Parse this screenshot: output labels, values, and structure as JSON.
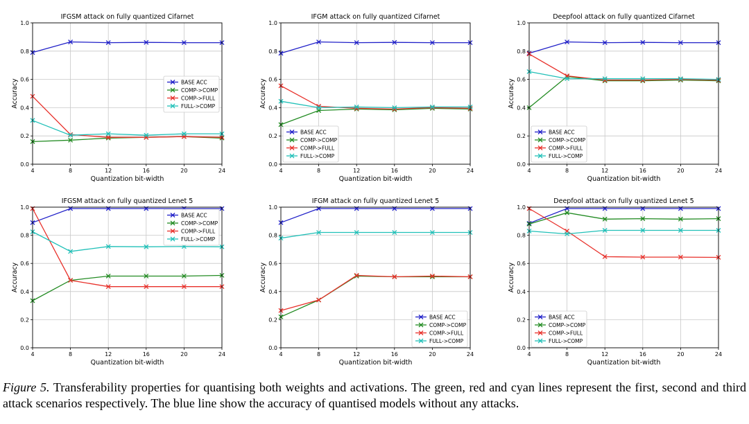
{
  "figure": {
    "shared": {
      "x": [
        4,
        8,
        12,
        16,
        20,
        24
      ],
      "xticks": [
        "4",
        "8",
        "12",
        "16",
        "20",
        "24"
      ],
      "yticks": [
        "0.0",
        "0.2",
        "0.4",
        "0.6",
        "0.8",
        "1.0"
      ],
      "xlabel": "Quantization bit-width",
      "ylabel": "Accuracy"
    },
    "caption": {
      "label": "Figure 5.",
      "text": " Transferability properties for quantising both weights and activations. The green, red and cyan lines represent the first, second and third attack scenarios respectively. The blue line show the accuracy of quantised models without any attacks."
    }
  },
  "colors": {
    "base": "#1f1fc8",
    "comp_comp": "#228b22",
    "comp_full": "#e8302a",
    "full_comp": "#20c0b8",
    "grid": "#c8c8c8",
    "axis": "#000000"
  },
  "chart_data": [
    {
      "type": "line",
      "title": "IFGSM attack on fully quantized Cifarnet",
      "xlabel": "Quantization bit-width",
      "ylabel": "Accuracy",
      "x": [
        4,
        8,
        12,
        16,
        20,
        24
      ],
      "ylim": [
        0,
        1
      ],
      "grid": true,
      "legend": "center-right",
      "series": [
        {
          "name": "BASE ACC",
          "values": [
            0.79,
            0.865,
            0.86,
            0.862,
            0.86,
            0.86
          ]
        },
        {
          "name": "COMP->COMP",
          "values": [
            0.16,
            0.17,
            0.185,
            0.19,
            0.195,
            0.185
          ]
        },
        {
          "name": "COMP->FULL",
          "values": [
            0.48,
            0.21,
            0.19,
            0.19,
            0.195,
            0.19
          ]
        },
        {
          "name": "FULL->COMP",
          "values": [
            0.31,
            0.205,
            0.215,
            0.205,
            0.215,
            0.215
          ]
        }
      ]
    },
    {
      "type": "line",
      "title": "IFGM attack on fully quantized Cifarnet",
      "xlabel": "Quantization bit-width",
      "ylabel": "Accuracy",
      "x": [
        4,
        8,
        12,
        16,
        20,
        24
      ],
      "ylim": [
        0,
        1
      ],
      "grid": true,
      "legend": "lower-left",
      "series": [
        {
          "name": "BASE ACC",
          "values": [
            0.785,
            0.865,
            0.86,
            0.862,
            0.86,
            0.86
          ]
        },
        {
          "name": "COMP->COMP",
          "values": [
            0.28,
            0.38,
            0.39,
            0.385,
            0.395,
            0.39
          ]
        },
        {
          "name": "COMP->FULL",
          "values": [
            0.555,
            0.41,
            0.395,
            0.39,
            0.4,
            0.395
          ]
        },
        {
          "name": "FULL->COMP",
          "values": [
            0.445,
            0.4,
            0.405,
            0.4,
            0.405,
            0.405
          ]
        }
      ]
    },
    {
      "type": "line",
      "title": "Deepfool attack on fully quantized Cifarnet",
      "xlabel": "Quantization bit-width",
      "ylabel": "Accuracy",
      "x": [
        4,
        8,
        12,
        16,
        20,
        24
      ],
      "ylim": [
        0,
        1
      ],
      "grid": true,
      "legend": "lower-left",
      "series": [
        {
          "name": "BASE ACC",
          "values": [
            0.785,
            0.865,
            0.86,
            0.862,
            0.86,
            0.86
          ]
        },
        {
          "name": "COMP->COMP",
          "values": [
            0.4,
            0.62,
            0.59,
            0.59,
            0.595,
            0.59
          ]
        },
        {
          "name": "COMP->FULL",
          "values": [
            0.78,
            0.625,
            0.595,
            0.595,
            0.6,
            0.595
          ]
        },
        {
          "name": "FULL->COMP",
          "values": [
            0.655,
            0.605,
            0.605,
            0.605,
            0.605,
            0.6
          ]
        }
      ]
    },
    {
      "type": "line",
      "title": "IFGSM attack on fully quantized Lenet 5",
      "xlabel": "Quantization bit-width",
      "ylabel": "Accuracy",
      "x": [
        4,
        8,
        12,
        16,
        20,
        24
      ],
      "ylim": [
        0,
        1
      ],
      "grid": true,
      "legend": "top-right",
      "series": [
        {
          "name": "BASE ACC",
          "values": [
            0.89,
            0.99,
            0.99,
            0.99,
            0.99,
            0.99
          ]
        },
        {
          "name": "COMP->COMP",
          "values": [
            0.335,
            0.48,
            0.51,
            0.51,
            0.51,
            0.515
          ]
        },
        {
          "name": "COMP->FULL",
          "values": [
            0.99,
            0.48,
            0.435,
            0.435,
            0.435,
            0.435
          ]
        },
        {
          "name": "FULL->COMP",
          "values": [
            0.825,
            0.685,
            0.72,
            0.718,
            0.72,
            0.718
          ]
        }
      ]
    },
    {
      "type": "line",
      "title": "IFGM attack on fully quantized Lenet 5",
      "xlabel": "Quantization bit-width",
      "ylabel": "Accuracy",
      "x": [
        4,
        8,
        12,
        16,
        20,
        24
      ],
      "ylim": [
        0,
        1
      ],
      "grid": true,
      "legend": "lower-right",
      "series": [
        {
          "name": "BASE ACC",
          "values": [
            0.89,
            0.99,
            0.99,
            0.99,
            0.99,
            0.99
          ]
        },
        {
          "name": "COMP->COMP",
          "values": [
            0.22,
            0.34,
            0.51,
            0.505,
            0.505,
            0.505
          ]
        },
        {
          "name": "COMP->FULL",
          "values": [
            0.265,
            0.34,
            0.515,
            0.505,
            0.51,
            0.505
          ]
        },
        {
          "name": "FULL->COMP",
          "values": [
            0.78,
            0.82,
            0.82,
            0.82,
            0.82,
            0.82
          ]
        }
      ]
    },
    {
      "type": "line",
      "title": "Deepfool attack on fully quantized Lenet 5",
      "xlabel": "Quantization bit-width",
      "ylabel": "Accuracy",
      "x": [
        4,
        8,
        12,
        16,
        20,
        24
      ],
      "ylim": [
        0,
        1
      ],
      "grid": true,
      "legend": "lower-left",
      "series": [
        {
          "name": "BASE ACC",
          "values": [
            0.885,
            0.99,
            0.99,
            0.99,
            0.99,
            0.99
          ]
        },
        {
          "name": "COMP->COMP",
          "values": [
            0.88,
            0.96,
            0.915,
            0.918,
            0.915,
            0.918
          ]
        },
        {
          "name": "COMP->FULL",
          "values": [
            0.99,
            0.83,
            0.648,
            0.645,
            0.645,
            0.643
          ]
        },
        {
          "name": "FULL->COMP",
          "values": [
            0.83,
            0.81,
            0.835,
            0.835,
            0.835,
            0.835
          ]
        }
      ]
    }
  ]
}
